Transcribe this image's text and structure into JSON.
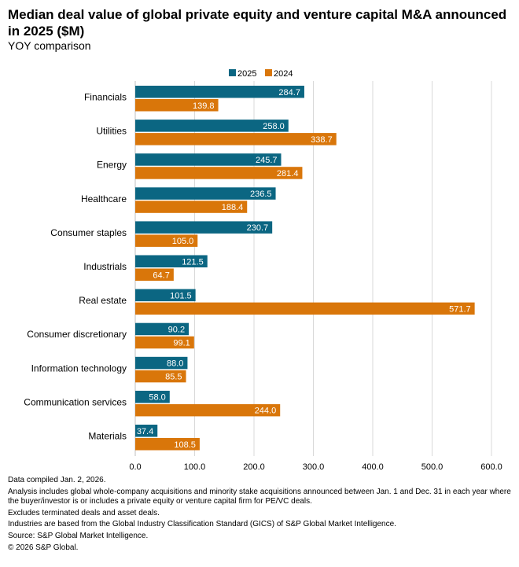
{
  "colors": {
    "s2025": "#0b6682",
    "s2024": "#d9760a",
    "grid": "#d9d9d9"
  },
  "chart_data": {
    "type": "bar",
    "orientation": "horizontal",
    "title": "Median deal value of global private equity and venture capital M&A announced in 2025 ($M)",
    "subtitle": "YOY comparison",
    "categories": [
      "Financials",
      "Utilities",
      "Energy",
      "Healthcare",
      "Consumer staples",
      "Industrials",
      "Real estate",
      "Consumer discretionary",
      "Information technology",
      "Communication services",
      "Materials"
    ],
    "series": [
      {
        "name": "2025",
        "values": [
          284.7,
          258.0,
          245.7,
          236.5,
          230.7,
          121.5,
          101.5,
          90.2,
          88.0,
          58.0,
          37.4
        ]
      },
      {
        "name": "2024",
        "values": [
          139.8,
          338.7,
          281.4,
          188.4,
          105.0,
          64.7,
          571.7,
          99.1,
          85.5,
          244.0,
          108.5
        ]
      }
    ],
    "xlim": [
      0,
      600
    ],
    "xticks": [
      "0.0",
      "100.0",
      "200.0",
      "300.0",
      "400.0",
      "500.0",
      "600.0"
    ],
    "legend_position": "top-center",
    "grid": true
  },
  "footnotes": [
    "Data compiled Jan. 2, 2026.",
    "Analysis includes global whole-company acquisitions and minority stake acquisitions announced between Jan. 1 and Dec. 31 in each year where the buyer/investor is or includes a private equity or venture capital firm for PE/VC deals.",
    "Excludes terminated deals and asset deals.",
    "Industries are based from the Global Industry Classification Standard (GICS) of S&P Global Market Intelligence.",
    "Source: S&P Global Market Intelligence.",
    "© 2026 S&P Global."
  ]
}
